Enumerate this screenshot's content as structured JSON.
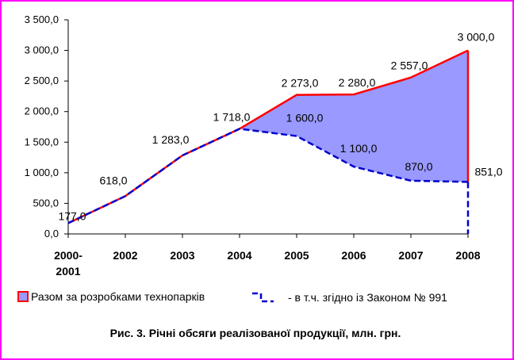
{
  "chart_data": {
    "type": "area",
    "title": "Рис. 3. Річні обсяги реалізованої продукції, млн. грн.",
    "xlabel": "",
    "ylabel": "",
    "categories": [
      "2000-\n2001",
      "2002",
      "2003",
      "2004",
      "2005",
      "2006",
      "2007",
      "2008"
    ],
    "series": [
      {
        "name": "Разом за розробками технопарків",
        "values": [
          177.0,
          618.0,
          1283.0,
          1718.0,
          2273.0,
          2280.0,
          2557.0,
          3000.0
        ],
        "labels": [
          "177,0",
          "618,0",
          "1 283,0",
          "1 718,0",
          "2 273,0",
          "2 280,0",
          "2 557,0",
          "3 000,0"
        ],
        "color": "#ff0000"
      },
      {
        "name": "- в т.ч. згідно із Законом № 991",
        "values": [
          177.0,
          618.0,
          1283.0,
          1718.0,
          1600.0,
          1100.0,
          870.0,
          851.0
        ],
        "labels": [
          "",
          "",
          "",
          "",
          "1 600,0",
          "1 100,0",
          "870,0",
          "851,0"
        ],
        "color": "#0000cc"
      }
    ],
    "ylim": [
      0,
      3500
    ],
    "yticks": [
      0,
      500,
      1000,
      1500,
      2000,
      2500,
      3000,
      3500
    ],
    "ytick_labels": [
      "0,0",
      "500,0",
      "1 000,0",
      "1 500,0",
      "2 000,0",
      "2 500,0",
      "3 000,0",
      "3 500,0"
    ],
    "fill_color": "#9999ff",
    "grid": false,
    "legend_position": "bottom"
  },
  "legend": {
    "item1": "Разом за розробками технопарків",
    "item2": "- в т.ч. згідно із Законом № 991"
  },
  "caption": "Рис. 3. Річні обсяги реалізованої продукції, млн. грн."
}
